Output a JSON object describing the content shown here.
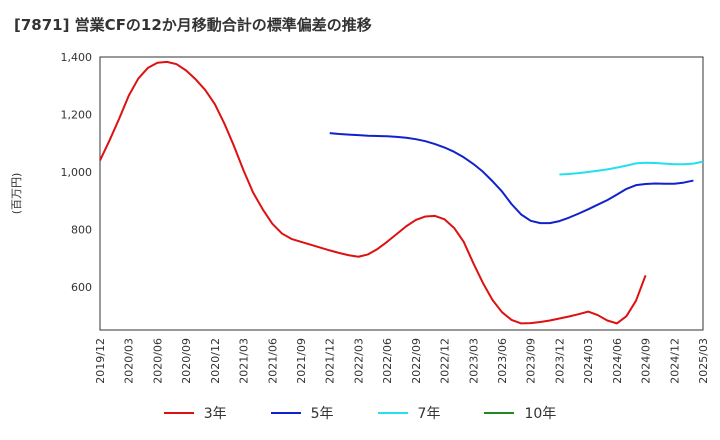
{
  "page": {
    "title": "[7871]  営業CFの12か月移動合計の標準偏差の推移"
  },
  "chart_data": {
    "type": "line",
    "title": "[7871]  営業CFの12か月移動合計の標準偏差の推移",
    "ylabel": "(百万円)",
    "xlabel": "",
    "ylim": [
      450,
      1400
    ],
    "yticks": [
      600,
      800,
      "1,000",
      "1,200",
      "1,400"
    ],
    "ytick_values": [
      600,
      800,
      1000,
      1200,
      1400
    ],
    "xticks": [
      "2019/12",
      "2020/03",
      "2020/06",
      "2020/09",
      "2020/12",
      "2021/03",
      "2021/06",
      "2021/09",
      "2021/12",
      "2022/03",
      "2022/06",
      "2022/09",
      "2022/12",
      "2023/03",
      "2023/06",
      "2023/09",
      "2023/12",
      "2024/03",
      "2024/06",
      "2024/09",
      "2024/12",
      "2025/03"
    ],
    "grid": true,
    "legend_position": "bottom",
    "series": [
      {
        "name": "3年",
        "color": "#dd1111",
        "start_index": 0,
        "values": [
          1040,
          1110,
          1185,
          1265,
          1325,
          1362,
          1380,
          1383,
          1375,
          1353,
          1322,
          1285,
          1236,
          1168,
          1090,
          1005,
          928,
          870,
          820,
          786,
          767,
          757,
          747,
          737,
          727,
          718,
          710,
          705,
          713,
          732,
          757,
          784,
          811,
          833,
          845,
          847,
          835,
          805,
          757,
          683,
          614,
          555,
          512,
          485,
          473,
          474,
          478,
          483,
          490,
          497,
          505,
          514,
          502,
          483,
          473,
          498,
          552,
          640
        ]
      },
      {
        "name": "5年",
        "color": "#1122cc",
        "start_index": 24,
        "values": [
          1135,
          1132,
          1130,
          1128,
          1126,
          1125,
          1124,
          1122,
          1119,
          1114,
          1107,
          1097,
          1085,
          1070,
          1051,
          1028,
          1001,
          968,
          932,
          888,
          852,
          830,
          822,
          822,
          829,
          841,
          855,
          870,
          886,
          902,
          921,
          941,
          954,
          958,
          960,
          959,
          959,
          963,
          970
        ]
      },
      {
        "name": "7年",
        "color": "#22e0ee",
        "start_index": 48,
        "values": [
          991,
          993,
          996,
          1000,
          1004,
          1009,
          1015,
          1022,
          1030,
          1032,
          1031,
          1029,
          1027,
          1027,
          1029,
          1036
        ]
      },
      {
        "name": "10年",
        "color": "#228822",
        "start_index": 0,
        "values": []
      }
    ]
  }
}
